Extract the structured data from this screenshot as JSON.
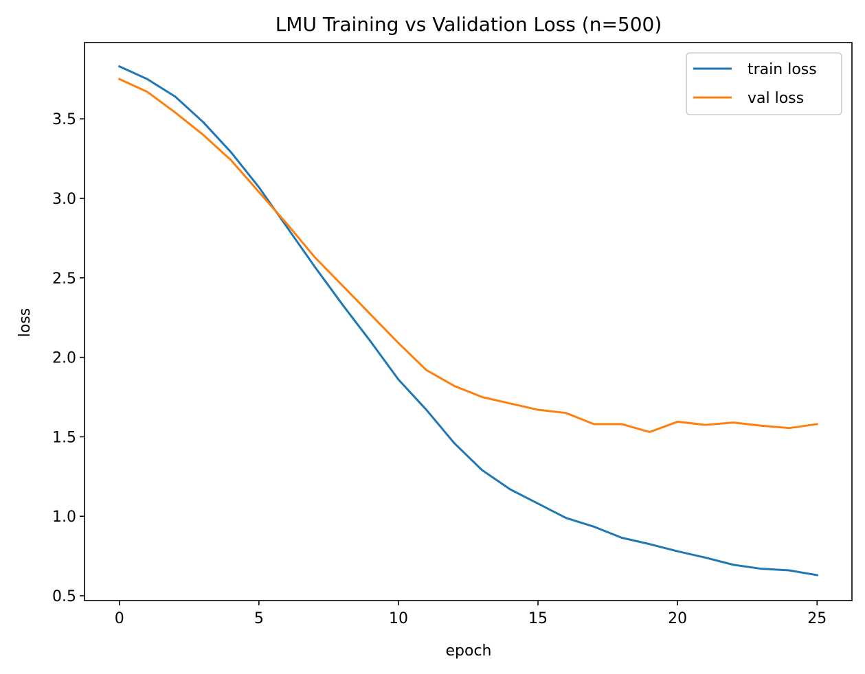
{
  "chart_data": {
    "type": "line",
    "title": "LMU Training vs Validation Loss (n=500)",
    "xlabel": "epoch",
    "ylabel": "loss",
    "xlim": [
      -1.25,
      26.25
    ],
    "ylim": [
      0.47,
      3.98
    ],
    "xticks": [
      0,
      5,
      10,
      15,
      20,
      25
    ],
    "xtick_labels": [
      "0",
      "5",
      "10",
      "15",
      "20",
      "25"
    ],
    "yticks": [
      0.5,
      1.0,
      1.5,
      2.0,
      2.5,
      3.0,
      3.5
    ],
    "ytick_labels": [
      "0.5",
      "1.0",
      "1.5",
      "2.0",
      "2.5",
      "3.0",
      "3.5"
    ],
    "grid": false,
    "legend_position": "top-right",
    "x": [
      0,
      1,
      2,
      3,
      4,
      5,
      6,
      7,
      8,
      9,
      10,
      11,
      12,
      13,
      14,
      15,
      16,
      17,
      18,
      19,
      20,
      21,
      22,
      23,
      24,
      25
    ],
    "series": [
      {
        "name": "train loss",
        "color": "#1f77b4",
        "values": [
          3.83,
          3.75,
          3.64,
          3.48,
          3.29,
          3.07,
          2.82,
          2.57,
          2.33,
          2.1,
          1.86,
          1.67,
          1.46,
          1.29,
          1.17,
          1.08,
          0.99,
          0.935,
          0.865,
          0.825,
          0.78,
          0.74,
          0.695,
          0.67,
          0.66,
          0.63
        ]
      },
      {
        "name": "val loss",
        "color": "#ff7f0e",
        "values": [
          3.75,
          3.67,
          3.54,
          3.4,
          3.24,
          3.04,
          2.84,
          2.63,
          2.45,
          2.27,
          2.09,
          1.92,
          1.82,
          1.75,
          1.71,
          1.67,
          1.65,
          1.58,
          1.58,
          1.53,
          1.595,
          1.575,
          1.59,
          1.57,
          1.555,
          1.58
        ]
      }
    ]
  }
}
